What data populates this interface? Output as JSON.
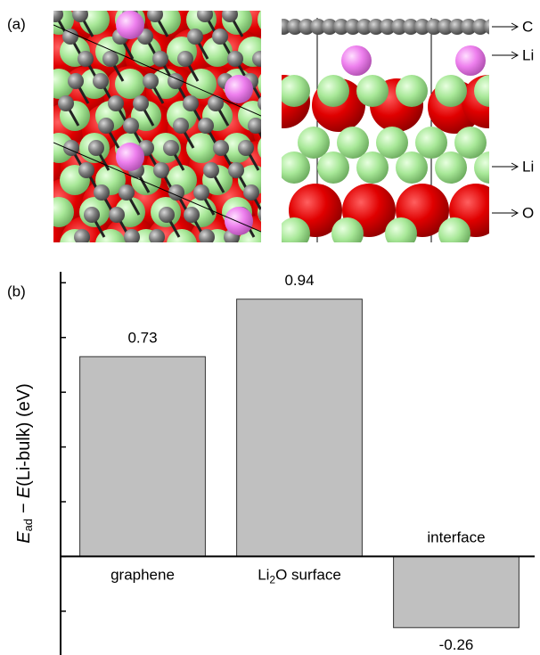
{
  "panel_a": {
    "label": "(a)",
    "annotations": [
      "C",
      "Li",
      "Li",
      "O"
    ]
  },
  "chart_data": {
    "type": "bar",
    "panel_label": "(b)",
    "ylabel": {
      "prefix": "E",
      "subscript": "ad",
      "middle": " − E",
      "suffix": "(Li-bulk) (eV)"
    },
    "categories": [
      "graphene",
      "Li2O surface",
      "interface"
    ],
    "values": [
      0.73,
      0.94,
      -0.26
    ],
    "color": "#c0c0c0",
    "ylim": [
      -0.36,
      1.04
    ],
    "yticks": [
      -0.2,
      0,
      0.2,
      0.4,
      0.6,
      0.8,
      1.0
    ],
    "grid": false
  }
}
